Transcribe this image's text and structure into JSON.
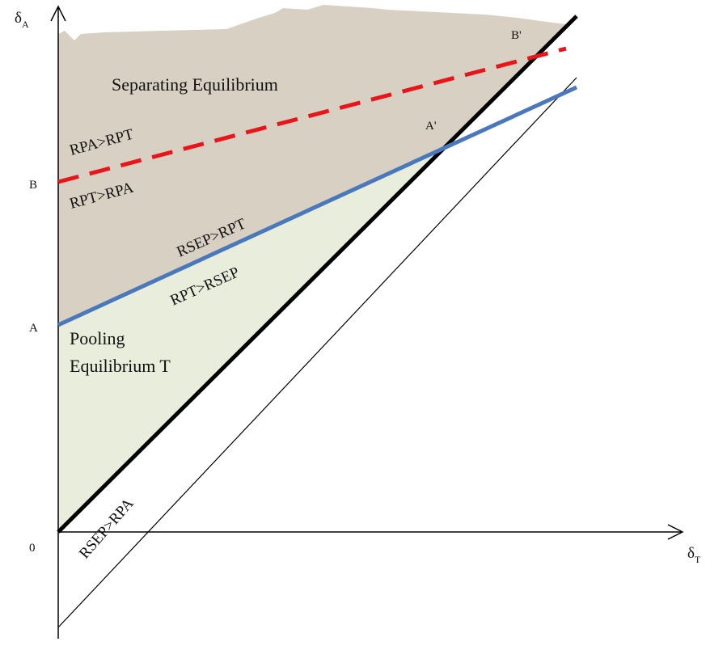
{
  "diagram": {
    "axes": {
      "y_label": "δ",
      "y_label_sub": "A",
      "x_label": "δ",
      "x_label_sub": "T",
      "origin_label": "0"
    },
    "points": {
      "A": "A",
      "B": "B",
      "A_prime": "A'",
      "B_prime": "B'"
    },
    "regions": {
      "separating": "Separating Equilibrium",
      "pooling_line1": "Pooling",
      "pooling_line2": "Equilibrium T"
    },
    "line_labels": {
      "rpa_gt_rpt": "RPA>RPT",
      "rpt_gt_rpa": "RPT>RPA",
      "rsep_gt_rpt": "RSEP>RPT",
      "rpt_gt_rsep": "RPT>RSEP",
      "rsep_gt_rpa": "RSEP>RPA"
    },
    "colors": {
      "separating_fill": "#d8d1c3",
      "pooling_fill": "#e9eddc",
      "rpa_line": "#e8161b",
      "rsep_line": "#4a78bc",
      "diagonal": "#000000",
      "thin_line": "#000000"
    }
  }
}
